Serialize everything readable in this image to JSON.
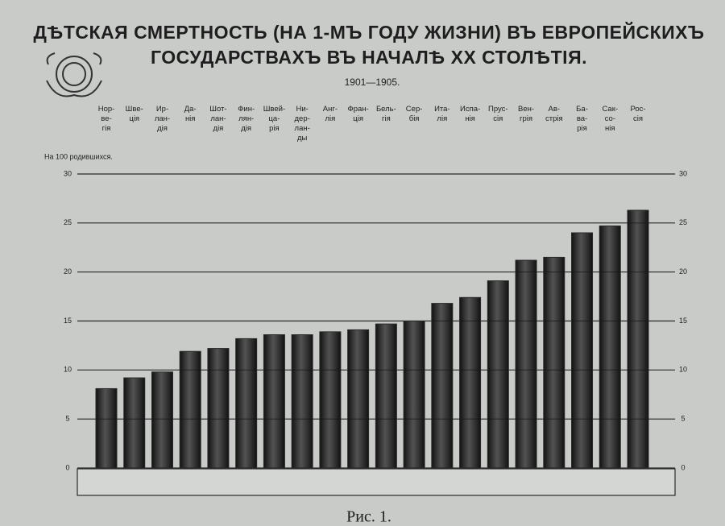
{
  "chart_data": {
    "type": "bar",
    "title": "ДѢТСКАЯ СМЕРТНОСТЬ (НА 1-МЪ ГОДУ ЖИЗНИ) ВЪ ЕВРОПЕЙСКИХЪ\nГОСУДАРСТВАХЪ ВЪ НАЧАЛѢ XX СТОЛѢТІЯ.",
    "subtitle": "1901—1905.",
    "y_label": "На 100 родившихся.",
    "caption": "Рис. 1.",
    "categories": [
      "Нор-\nве-\nгія",
      "Шве-\nція",
      "Ир-\nлан-\nдія",
      "Да-\nнія",
      "Шот-\nлан-\nдія",
      "Фин-\nлян-\nдія",
      "Швей-\nца-\nрія",
      "Ни-\nдер-\nлан-\nды",
      "Анг-\nлія",
      "Фран-\nція",
      "Бель-\nгія",
      "Сер-\nбія",
      "Ита-\nлія",
      "Испа-\nнія",
      "Прус-\nсія",
      "Вен-\nгрія",
      "Ав-\nстрія",
      "Ба-\nва-\nрія",
      "Сак-\nсо-\nнія",
      "Рос-\nсія"
    ],
    "values": [
      8.1,
      9.2,
      9.8,
      11.9,
      12.2,
      13.2,
      13.6,
      13.6,
      13.9,
      14.1,
      14.7,
      15.0,
      16.8,
      17.4,
      19.1,
      21.2,
      21.5,
      24.0,
      24.7,
      26.3
    ],
    "color": "#2a2a2a",
    "ylim": [
      0,
      30
    ],
    "yticks": [
      0,
      5,
      10,
      15,
      20,
      25,
      30
    ],
    "grid": true
  }
}
